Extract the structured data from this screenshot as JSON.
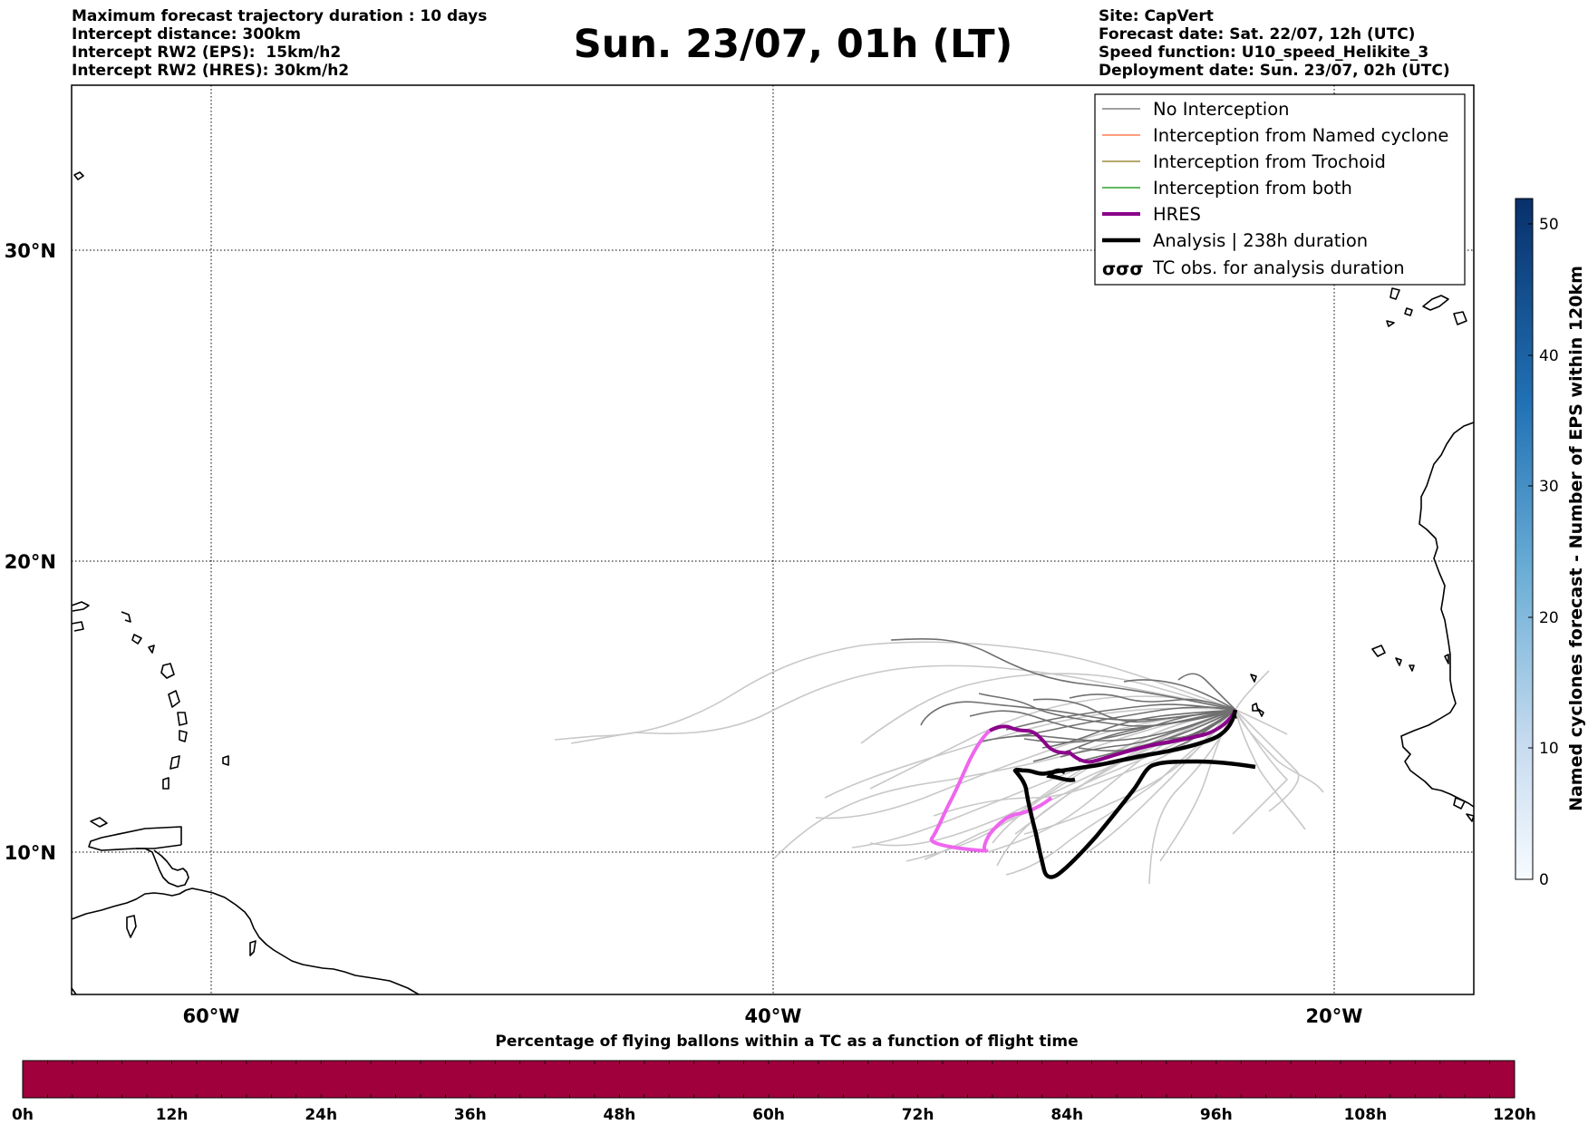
{
  "header_left": {
    "line1": "Maximum forecast trajectory duration : 10 days",
    "line2": "Intercept distance: 300km",
    "line3": "Intercept RW2 (EPS):  15km/h2",
    "line4": "Intercept RW2 (HRES): 30km/h2"
  },
  "header_right": {
    "line1": "Site: CapVert",
    "line2": "Forecast date: Sat. 22/07, 12h (UTC)",
    "line3": "Speed function: U10_speed_Helikite_3",
    "line4": "Deployment date: Sun. 23/07, 02h (UTC)"
  },
  "title": "Sun. 23/07, 01h (LT)",
  "map": {
    "lat_labels": [
      "30°N",
      "20°N",
      "10°N"
    ],
    "lon_labels": [
      "60°W",
      "40°W",
      "20°W"
    ],
    "lon_range": [
      -65,
      -15
    ],
    "lat_range": [
      5.5,
      34.8
    ],
    "gridline_style": "dotted"
  },
  "legend": {
    "items": [
      {
        "label": "No Interception",
        "color": "#808080"
      },
      {
        "label": "Interception from Named cyclone",
        "color": "#ff7f50"
      },
      {
        "label": "Interception from Trochoid",
        "color": "#9c8a3c"
      },
      {
        "label": "Interception from both",
        "color": "#2ca02c"
      },
      {
        "label": "HRES",
        "color": "#8b008b"
      },
      {
        "label": "Analysis | 238h duration",
        "color": "#000000"
      },
      {
        "label": "TC obs. for analysis duration",
        "color": "#000000",
        "symbol": "σσσ"
      }
    ]
  },
  "colorbar_right": {
    "label": "Named cyclones forecast - Number of EPS within 120km",
    "ticks": [
      "0",
      "10",
      "20",
      "30",
      "40",
      "50"
    ],
    "range": [
      0,
      52
    ],
    "colormap": "Blues"
  },
  "colorbar_bottom": {
    "title": "Percentage of flying ballons within a TC as a function of flight time",
    "ticks": [
      "0h",
      "12h",
      "24h",
      "36h",
      "48h",
      "60h",
      "72h",
      "84h",
      "96h",
      "108h",
      "120h"
    ],
    "fill_color": "#a0003c"
  },
  "chart_data": {
    "type": "line",
    "title": "Sun. 23/07, 01h (LT)",
    "xlim": [
      -65,
      -15
    ],
    "ylim": [
      5.5,
      34.8
    ],
    "deployment_site": {
      "lon": -23.0,
      "lat": 15.0
    },
    "series": [
      {
        "name": "HRES",
        "color": "#8b008b",
        "x": [
          -23.0,
          -23.4,
          -24.2,
          -25.0,
          -25.8,
          -26.6,
          -27.4,
          -28.0,
          -28.6,
          -29.2,
          -29.6,
          -30.2,
          -30.6,
          -31.2,
          -31.6,
          -32.0,
          -32.6,
          -33.0
        ],
        "y": [
          15.0,
          14.4,
          14.0,
          14.0,
          13.7,
          13.4,
          13.1,
          13.2,
          13.1,
          13.0,
          13.4,
          13.5,
          13.9,
          14.0,
          14.3,
          14.3,
          14.2,
          14.0
        ]
      },
      {
        "name": "HRES",
        "color": "#ee66ee",
        "x": [
          -33.0,
          -33.4,
          -33.8,
          -34.2,
          -34.6,
          -35.0,
          -35.6,
          -36.2,
          -36.8,
          -35.8,
          -35.0,
          -34.4,
          -33.8,
          -33.2,
          -32.6
        ],
        "y": [
          14.0,
          13.5,
          13.0,
          12.3,
          11.6,
          11.1,
          10.7,
          10.3,
          10.0,
          10.3,
          10.4,
          10.7,
          11.0,
          11.3,
          11.5
        ]
      },
      {
        "name": "Analysis | 238h duration",
        "color": "#000000",
        "x": [
          -23.0,
          -23.6,
          -24.4,
          -25.2,
          -26.0,
          -27.0,
          -28.0,
          -29.0,
          -30.0,
          -30.6,
          -31.0,
          -31.4,
          -31.9,
          -32.3,
          -32.6,
          -32.4,
          -32.9,
          -32.7,
          -32.5,
          -32.0,
          -31.6,
          -31.4,
          -31.3,
          -31.2,
          -30.8,
          -30.2,
          -29.6,
          -29.0,
          -28.4,
          -27.8,
          -27.3,
          -26.6,
          -25.8,
          -25.0,
          -24.0,
          -23.0,
          -22.3
        ],
        "y": [
          15.0,
          14.2,
          13.9,
          13.7,
          13.3,
          13.0,
          12.8,
          12.6,
          12.4,
          12.3,
          12.5,
          12.3,
          12.0,
          12.0,
          12.4,
          12.6,
          12.5,
          12.2,
          12.3,
          12.1,
          11.0,
          10.0,
          9.4,
          9.3,
          9.7,
          10.2,
          10.9,
          11.5,
          12.1,
          12.7,
          12.9,
          13.0,
          13.1,
          13.0,
          12.9,
          12.8,
          12.7
        ]
      }
    ]
  }
}
